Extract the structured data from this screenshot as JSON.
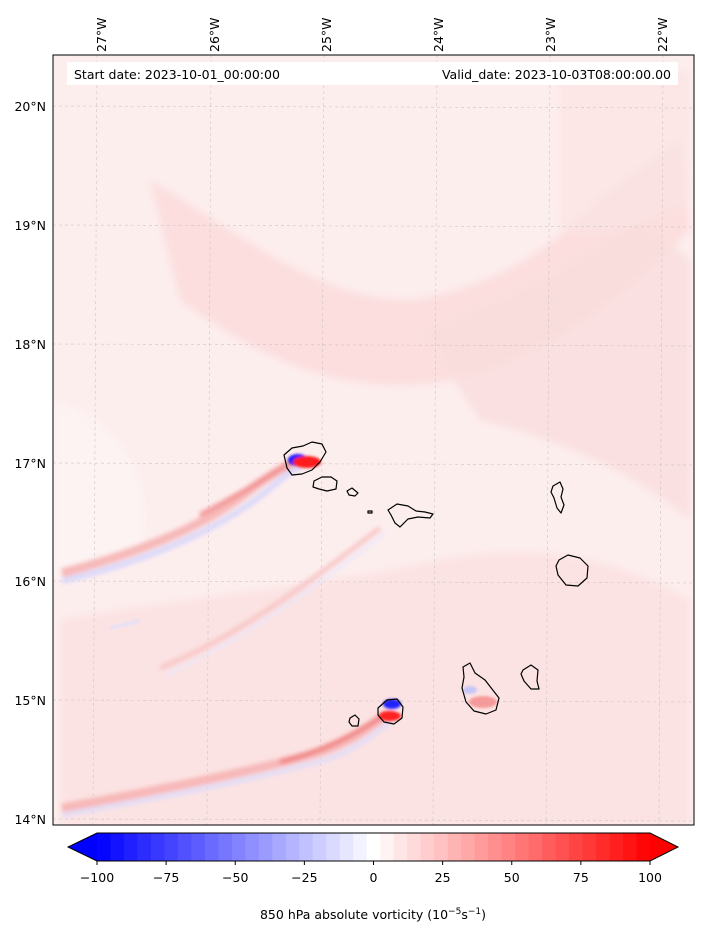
{
  "header": {
    "start_date": "Start date: 2023-10-01_00:00:00",
    "valid_date": "Valid_date: 2023-10-03T08:00:00.00"
  },
  "map": {
    "lon_labels": [
      "27°W",
      "26°W",
      "25°W",
      "24°W",
      "23°W",
      "22°W"
    ],
    "lat_labels": [
      "20°N",
      "19°N",
      "18°N",
      "17°N",
      "16°N",
      "15°N",
      "14°N"
    ],
    "features": {
      "islands": [
        "santo-antao",
        "sao-vicente",
        "santa-luzia",
        "branco",
        "sao-nicolau",
        "sal",
        "boa-vista",
        "santiago",
        "maio",
        "fogo",
        "brava"
      ],
      "streaks": [
        "santo-antao-wake",
        "sao-nicolau-wake",
        "fogo-wake"
      ]
    }
  },
  "colorbar": {
    "title_main": "850 hPa absolute vorticity (10",
    "title_exp1": "−5",
    "title_mid": "s",
    "title_exp2": "−1",
    "title_end": ")",
    "ticks": [
      "−100",
      "−75",
      "−50",
      "−25",
      "0",
      "25",
      "50",
      "75",
      "100"
    ],
    "min": -100,
    "max": 100,
    "levels": 41,
    "neg_color": "#0000ff",
    "mid_color": "#ffffff",
    "pos_color": "#ff0000"
  }
}
